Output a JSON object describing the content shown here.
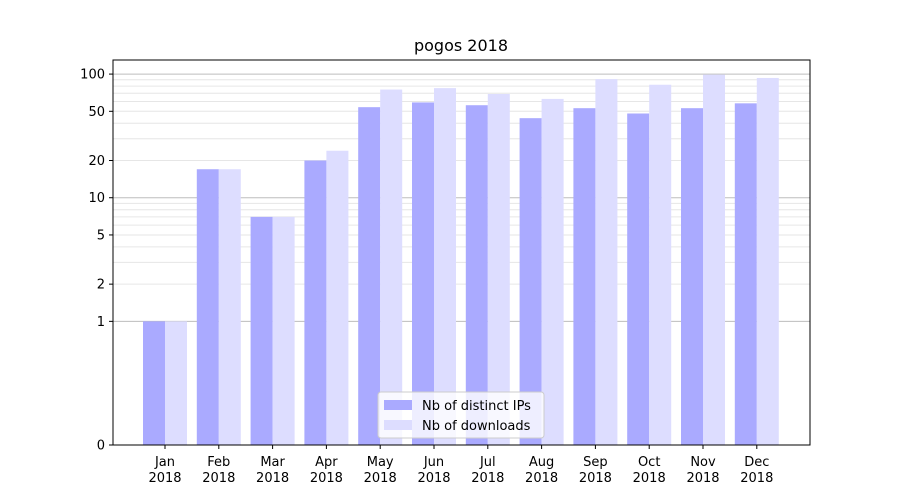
{
  "chart_data": {
    "type": "bar",
    "title": "pogos 2018",
    "xlabel": "",
    "ylabel": "",
    "yscale": "symlog",
    "ylim": [
      0,
      130
    ],
    "yticks": [
      0,
      1,
      2,
      5,
      10,
      20,
      50,
      100
    ],
    "grid": true,
    "legend_position": "bottom-center",
    "categories": [
      "Jan\n2018",
      "Feb\n2018",
      "Mar\n2018",
      "Apr\n2018",
      "May\n2018",
      "Jun\n2018",
      "Jul\n2018",
      "Aug\n2018",
      "Sep\n2018",
      "Oct\n2018",
      "Nov\n2018",
      "Dec\n2018"
    ],
    "series": [
      {
        "name": "Nb of distinct IPs",
        "color": "#aaaaff",
        "values": [
          1,
          17,
          7,
          20,
          54,
          59,
          56,
          44,
          53,
          48,
          53,
          58
        ]
      },
      {
        "name": "Nb of downloads",
        "color": "#ddddff",
        "values": [
          1,
          17,
          7,
          24,
          75,
          77,
          69,
          63,
          91,
          82,
          99,
          93
        ]
      }
    ]
  }
}
